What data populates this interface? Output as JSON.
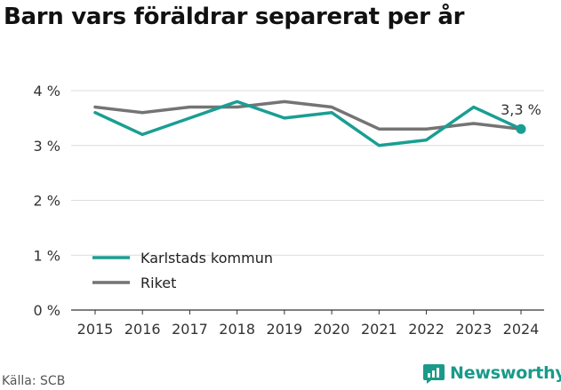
{
  "title": "Barn vars föräldrar separerat per år",
  "source": "Källa: SCB",
  "brand": "Newsworthy",
  "chart_data": {
    "type": "line",
    "title": "Barn vars föräldrar separerat per år",
    "x": [
      2015,
      2016,
      2017,
      2018,
      2019,
      2020,
      2021,
      2022,
      2023,
      2024
    ],
    "ylim": [
      0,
      4
    ],
    "yticks": [
      0,
      1,
      2,
      3,
      4
    ],
    "ytick_labels": [
      "0 %",
      "1 %",
      "2 %",
      "3 %",
      "4 %"
    ],
    "grid": true,
    "legend_position": "lower-left",
    "series": [
      {
        "name": "Karlstads kommun",
        "color": "#1a9e93",
        "values": [
          3.6,
          3.2,
          3.5,
          3.8,
          3.5,
          3.6,
          3.0,
          3.1,
          3.7,
          3.3
        ]
      },
      {
        "name": "Riket",
        "color": "#747474",
        "values": [
          3.7,
          3.6,
          3.7,
          3.7,
          3.8,
          3.7,
          3.3,
          3.3,
          3.4,
          3.3
        ]
      }
    ],
    "annotation": {
      "text": "3,3 %",
      "series": 0,
      "index": 9
    }
  }
}
